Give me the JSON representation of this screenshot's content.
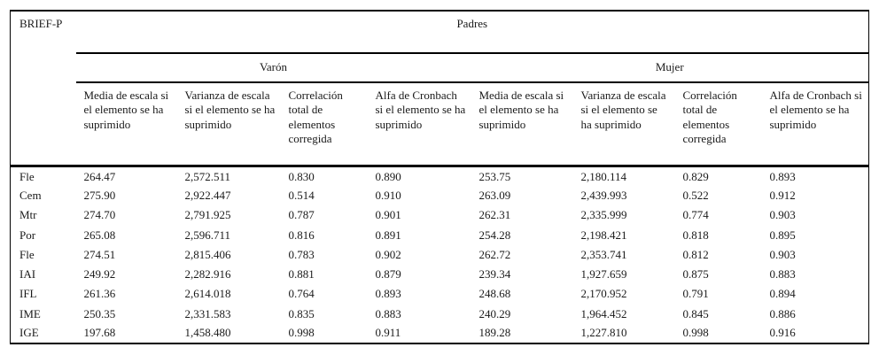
{
  "colors": {
    "background": "#ffffff",
    "text": "#1a1a1a",
    "rule": "#000000"
  },
  "table": {
    "row_header_label": "BRIEF-P",
    "group_header": "Padres",
    "subgroups": [
      "Varón",
      "Mujer"
    ],
    "column_headers": [
      "Media de escala si el elemento se ha suprimido",
      "Varianza de escala si el elemento se ha suprimido",
      "Correlación total de elementos corregida",
      "Alfa de Cronbach si el elemento se ha suprimido"
    ],
    "rows": [
      {
        "label": "Fle",
        "values": [
          "264.47",
          "2,572.511",
          "0.830",
          "0.890",
          "253.75",
          "2,180.114",
          "0.829",
          "0.893"
        ]
      },
      {
        "label": "Cem",
        "values": [
          "275.90",
          "2,922.447",
          "0.514",
          "0.910",
          "263.09",
          "2,439.993",
          "0.522",
          "0.912"
        ]
      },
      {
        "label": "Mtr",
        "values": [
          "274.70",
          "2,791.925",
          "0.787",
          "0.901",
          "262.31",
          "2,335.999",
          "0.774",
          "0.903"
        ]
      },
      {
        "label": "Por",
        "values": [
          "265.08",
          "2,596.711",
          "0.816",
          "0.891",
          "254.28",
          "2,198.421",
          "0.818",
          "0.895"
        ]
      },
      {
        "label": "Fle",
        "values": [
          "274.51",
          "2,815.406",
          "0.783",
          "0.902",
          "262.72",
          "2,353.741",
          "0.812",
          "0.903"
        ]
      },
      {
        "label": "IAI",
        "values": [
          "249.92",
          "2,282.916",
          "0.881",
          "0.879",
          "239.34",
          "1,927.659",
          "0.875",
          "0.883"
        ]
      },
      {
        "label": "IFL",
        "values": [
          "261.36",
          "2,614.018",
          "0.764",
          "0.893",
          "248.68",
          "2,170.952",
          "0.791",
          "0.894"
        ]
      },
      {
        "label": "IME",
        "values": [
          "250.35",
          "2,331.583",
          "0.835",
          "0.883",
          "240.29",
          "1,964.452",
          "0.845",
          "0.886"
        ]
      },
      {
        "label": "IGE",
        "values": [
          "197.68",
          "1,458.480",
          "0.998",
          "0.911",
          "189.28",
          "1,227.810",
          "0.998",
          "0.916"
        ]
      }
    ]
  }
}
